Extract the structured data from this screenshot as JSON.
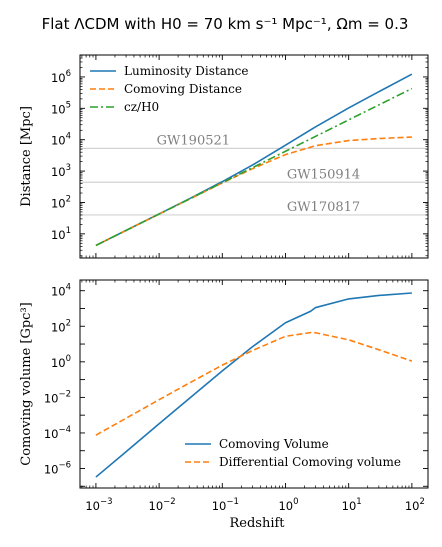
{
  "figure": {
    "title": "Flat ΛCDM with H0 = 70 km s⁻¹ Mpc⁻¹, Ωm = 0.3"
  },
  "chart_data": [
    {
      "type": "line",
      "xscale": "log",
      "yscale": "log",
      "xlim": [
        0.00056,
        180
      ],
      "ylim": [
        1.7,
        5000000
      ],
      "xlabel": "",
      "ylabel": "Distance [Mpc]",
      "yticks": [
        1,
        2,
        3,
        4,
        5,
        6
      ],
      "grid": false,
      "legend_position": "upper-left",
      "x": [
        0.001,
        0.003,
        0.01,
        0.03,
        0.1,
        0.3,
        1,
        3,
        10,
        30,
        100
      ],
      "series": [
        {
          "name": "Luminosity Distance",
          "color": "#1f77b4",
          "dash": "solid",
          "values": [
            4.28,
            12.9,
            43.1,
            131,
            461,
            1550,
            6700,
            25800,
            103000,
            338000,
            1220000
          ]
        },
        {
          "name": "Comoving Distance",
          "color": "#ff7f0e",
          "dash": "dashed",
          "values": [
            4.28,
            12.8,
            42.7,
            127,
            419,
            1190,
            3350,
            6460,
            9380,
            10900,
            12100
          ]
        },
        {
          "name": "cz/H0",
          "color": "#2ca02c",
          "dash": "dashdot",
          "values": [
            4.28,
            12.8,
            42.8,
            128,
            428,
            1280,
            4280,
            12800,
            42800,
            128000,
            428000
          ]
        }
      ],
      "reference_lines": [
        {
          "label": "GW190521",
          "y": 5300,
          "label_x": 0.00915
        },
        {
          "label": "GW150914",
          "y": 440,
          "label_x": 1.05
        },
        {
          "label": "GW170817",
          "y": 40,
          "label_x": 1.05
        }
      ]
    },
    {
      "type": "line",
      "xscale": "log",
      "yscale": "log",
      "xlim": [
        0.00056,
        180
      ],
      "ylim": [
        8e-08,
        40000
      ],
      "xlabel": "Redshift",
      "ylabel": "Comoving volume [Gpc³]",
      "xticks": [
        -3,
        -2,
        -1,
        0,
        1,
        2
      ],
      "yticks": [
        -6,
        -4,
        -2,
        0,
        2,
        4
      ],
      "grid": false,
      "legend_position": "lower-right",
      "x": [
        0.001,
        0.003,
        0.01,
        0.03,
        0.1,
        0.3,
        1,
        2.5,
        3,
        10,
        30,
        100
      ],
      "series": [
        {
          "name": "Comoving Volume",
          "color": "#1f77b4",
          "dash": "solid",
          "values": [
            3.3e-07,
            8.8e-06,
            0.00033,
            0.0086,
            0.31,
            7.06,
            157,
            700,
            1130,
            3460,
            5420,
            7420
          ]
        },
        {
          "name": "Differential Comoving volume",
          "color": "#ff7f0e",
          "dash": "dashed",
          "values": [
            7.5e-05,
            0.00067,
            0.0074,
            0.064,
            0.65,
            4.3,
            27.3,
            44,
            43,
            17.3,
            4.8,
            1.1
          ]
        }
      ]
    }
  ]
}
